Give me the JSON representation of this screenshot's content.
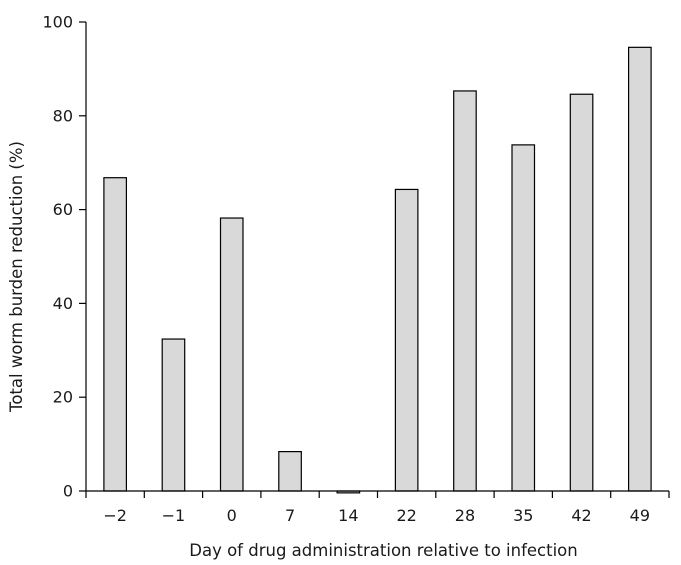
{
  "chart_data": {
    "type": "bar",
    "title": "",
    "xlabel": "Day of drug administration relative to infection",
    "ylabel": "Total worm burden reduction (%)",
    "categories": [
      "−2",
      "−1",
      "0",
      "7",
      "14",
      "22",
      "28",
      "35",
      "42",
      "49"
    ],
    "values": [
      66.8,
      32.4,
      58.2,
      8.4,
      -0.4,
      64.3,
      85.3,
      73.8,
      84.6,
      94.6
    ],
    "ylim": [
      0,
      100
    ],
    "yticks": [
      "0",
      "20",
      "40",
      "60",
      "80",
      "100"
    ],
    "grid": false,
    "legend": "none",
    "bar_color": "#d9d9d9",
    "edge_color": "#000000"
  }
}
